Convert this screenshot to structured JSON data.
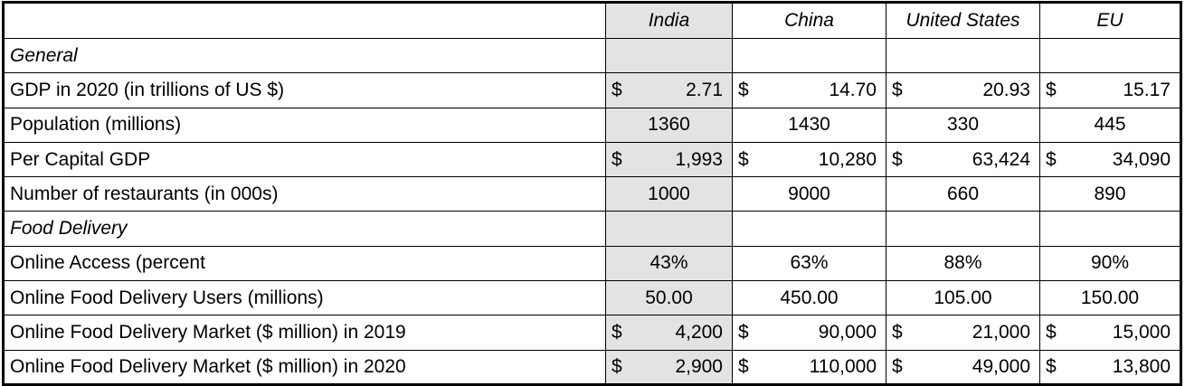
{
  "table": {
    "columns": [
      "India",
      "China",
      "United States",
      "EU"
    ],
    "rows": [
      {
        "label": "General",
        "cells": []
      },
      {
        "label": "GDP in 2020 (in trillions of US $)",
        "cells": [
          [
            "$",
            "2.71"
          ],
          [
            "$",
            "14.70"
          ],
          [
            "$",
            "20.93"
          ],
          [
            "$",
            "15.17"
          ]
        ]
      },
      {
        "label": "Population (millions)",
        "cells": [
          "1360",
          "1430",
          "330",
          "445"
        ]
      },
      {
        "label": "Per Capital GDP",
        "cells": [
          [
            "$",
            "1,993"
          ],
          [
            "$",
            "10,280"
          ],
          [
            "$",
            "63,424"
          ],
          [
            "$",
            "34,090"
          ]
        ]
      },
      {
        "label": "Number of restaurants (in 000s)",
        "cells": [
          "1000",
          "9000",
          "660",
          "890"
        ]
      },
      {
        "label": "Food Delivery",
        "cells": []
      },
      {
        "label": "Online Access (percent",
        "cells": [
          "43%",
          "63%",
          "88%",
          "90%"
        ]
      },
      {
        "label": "Online Food Delivery Users (millions)",
        "cells": [
          "50.00",
          "450.00",
          "105.00",
          "150.00"
        ]
      },
      {
        "label": "Online Food Delivery Market ($ million) in 2019",
        "cells": [
          [
            "$",
            "4,200"
          ],
          [
            "$",
            "90,000"
          ],
          [
            "$",
            "21,000"
          ],
          [
            "$",
            "15,000"
          ]
        ]
      },
      {
        "label": "Online Food Delivery Market ($ million) in 2020",
        "cells": [
          [
            "$",
            "2,900"
          ],
          [
            "$",
            "110,000"
          ],
          [
            "$",
            "49,000"
          ],
          [
            "$",
            "13,800"
          ]
        ]
      }
    ]
  }
}
